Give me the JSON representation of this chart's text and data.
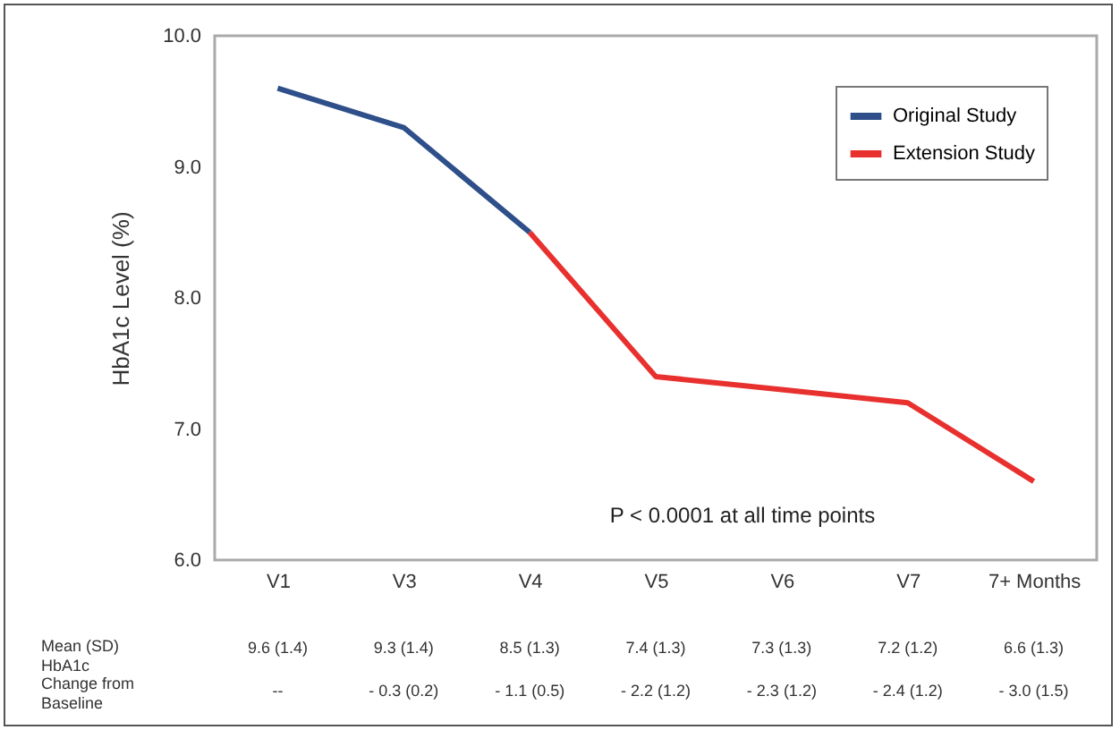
{
  "chart_data": {
    "type": "line",
    "categories": [
      "V1",
      "V3",
      "V4",
      "V5",
      "V6",
      "V7",
      "7+ Months"
    ],
    "ylabel": "HbA1c Level (%)",
    "series": [
      {
        "name": "Original Study",
        "color": "#2e4f8a",
        "values": [
          9.6,
          9.3,
          8.5,
          null,
          null,
          null,
          null
        ]
      },
      {
        "name": "Extension Study",
        "color": "#e8312f",
        "values": [
          null,
          null,
          8.5,
          7.4,
          7.3,
          7.2,
          6.6
        ]
      }
    ],
    "ylim": [
      6,
      10
    ],
    "yticks": [
      {
        "value": 6,
        "label": "6.0"
      },
      {
        "value": 7,
        "label": "7.0"
      },
      {
        "value": 8,
        "label": "8.0"
      },
      {
        "value": 9,
        "label": "9.0"
      },
      {
        "value": 10,
        "label": "10.0"
      }
    ],
    "annotations": [
      "P < 0.0001 at all time points",
      "Mean (SD)\nHbA1c",
      "Change from\nBaseline",
      "9.6 (1.4)",
      "9.3 (1.4)",
      "8.5 (1.3)",
      "7.4 (1.3)",
      "7.3 (1.3)",
      "7.2 (1.2)",
      "6.6 (1.3)",
      "--",
      "- 0.3 (0.2)",
      "- 1.1 (0.5)",
      "- 2.2 (1.2)",
      "- 2.3 (1.2)",
      "- 2.4 (1.2)",
      "- 3.0 (1.5)"
    ],
    "legend": "top right",
    "grid": false
  }
}
